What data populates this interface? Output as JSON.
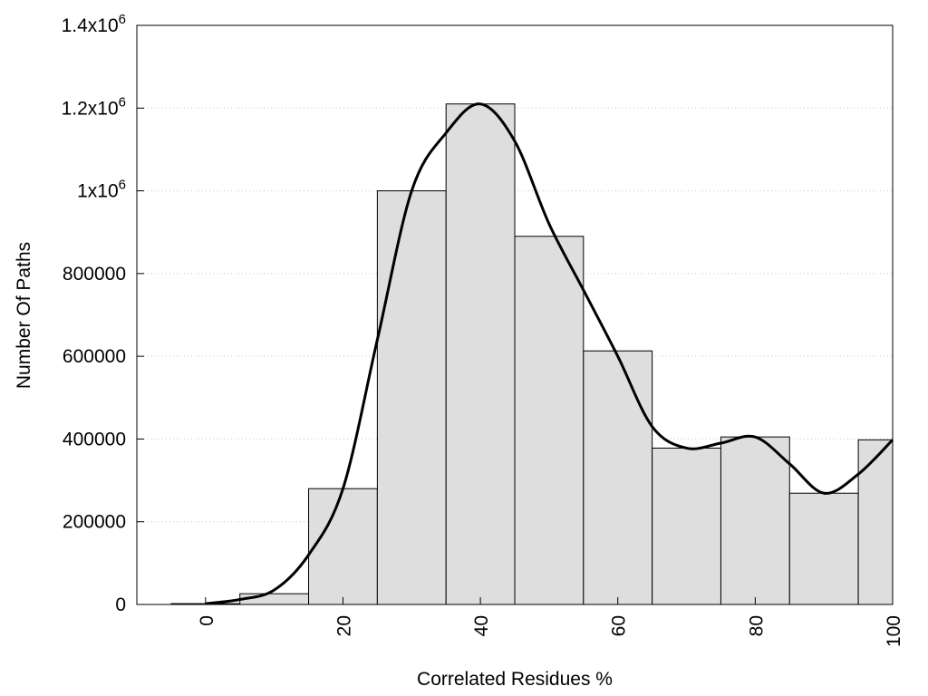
{
  "chart_data": {
    "type": "bar",
    "xlabel": "Correlated Residues %",
    "ylabel": "Number Of Paths",
    "xlim": [
      -10,
      100
    ],
    "ylim": [
      0,
      1400000
    ],
    "grid": "horizontal dotted",
    "x_ticks": [
      {
        "value": 0,
        "label": "0"
      },
      {
        "value": 20,
        "label": "20"
      },
      {
        "value": 40,
        "label": "40"
      },
      {
        "value": 60,
        "label": "60"
      },
      {
        "value": 80,
        "label": "80"
      },
      {
        "value": 100,
        "label": "100"
      }
    ],
    "y_ticks": [
      {
        "value": 0,
        "label": "0",
        "exp": ""
      },
      {
        "value": 200000,
        "label": "200000",
        "exp": ""
      },
      {
        "value": 400000,
        "label": "400000",
        "exp": ""
      },
      {
        "value": 600000,
        "label": "600000",
        "exp": ""
      },
      {
        "value": 800000,
        "label": "800000",
        "exp": ""
      },
      {
        "value": 1000000,
        "label": "1x10",
        "exp": "6"
      },
      {
        "value": 1200000,
        "label": "1.2x10",
        "exp": "6"
      },
      {
        "value": 1400000,
        "label": "1.4x10",
        "exp": "6"
      }
    ],
    "bars": [
      {
        "center": 0,
        "value": 2000
      },
      {
        "center": 10,
        "value": 26000
      },
      {
        "center": 20,
        "value": 280000
      },
      {
        "center": 30,
        "value": 1000000
      },
      {
        "center": 40,
        "value": 1210000
      },
      {
        "center": 50,
        "value": 890000
      },
      {
        "center": 60,
        "value": 613000
      },
      {
        "center": 70,
        "value": 378000
      },
      {
        "center": 80,
        "value": 405000
      },
      {
        "center": 90,
        "value": 269000
      },
      {
        "center": 100,
        "value": 398000
      }
    ],
    "bar_width": 10,
    "bar_color": "#dedede",
    "curve": {
      "type": "smooth",
      "color": "#000000",
      "points": [
        {
          "x": 0,
          "y": 2000
        },
        {
          "x": 5,
          "y": 12000
        },
        {
          "x": 10,
          "y": 35000
        },
        {
          "x": 15,
          "y": 120000
        },
        {
          "x": 20,
          "y": 280000
        },
        {
          "x": 25,
          "y": 640000
        },
        {
          "x": 30,
          "y": 1000000
        },
        {
          "x": 35,
          "y": 1140000
        },
        {
          "x": 40,
          "y": 1210000
        },
        {
          "x": 45,
          "y": 1120000
        },
        {
          "x": 50,
          "y": 920000
        },
        {
          "x": 55,
          "y": 760000
        },
        {
          "x": 60,
          "y": 600000
        },
        {
          "x": 65,
          "y": 430000
        },
        {
          "x": 70,
          "y": 378000
        },
        {
          "x": 75,
          "y": 390000
        },
        {
          "x": 80,
          "y": 405000
        },
        {
          "x": 85,
          "y": 340000
        },
        {
          "x": 90,
          "y": 269000
        },
        {
          "x": 95,
          "y": 315000
        },
        {
          "x": 100,
          "y": 398000
        }
      ]
    }
  }
}
